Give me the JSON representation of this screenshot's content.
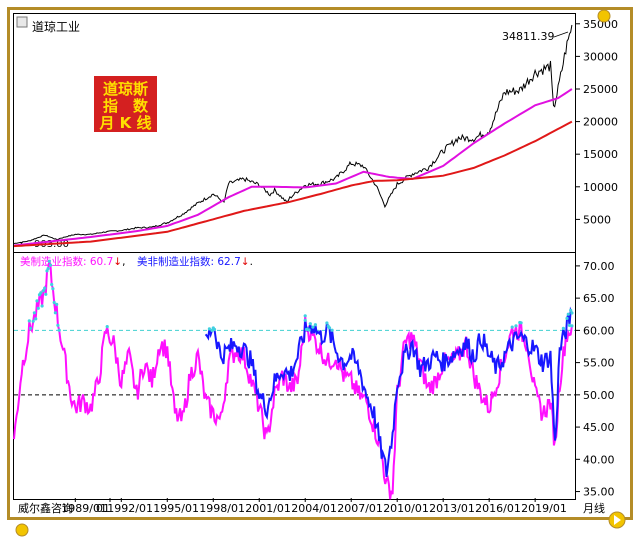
{
  "window_title": "道琼工业",
  "badge": {
    "lines": [
      "道琼斯",
      "指　数",
      "月 K 线"
    ],
    "bg": "#d42020",
    "fg": "#ffe000"
  },
  "footer": {
    "source": "威尔鑫咨询",
    "period": "月线"
  },
  "chart_data": [
    {
      "type": "line",
      "title": "道琼工业",
      "scale": "linear",
      "ylim": [
        0,
        36500
      ],
      "y_ticks": [
        "5000",
        "10000",
        "15000",
        "20000",
        "25000",
        "30000",
        "35000"
      ],
      "annotations": {
        "last_close": "34811.39",
        "low_marker": "903.00"
      },
      "series": [
        {
          "role": "index",
          "color": "#000000",
          "x": [
            1985,
            1986,
            1987,
            1987.8,
            1988,
            1989,
            1990,
            1991,
            1992,
            1993,
            1994,
            1995,
            1996,
            1997,
            1998,
            1998.7,
            1999,
            2000,
            2001,
            2001.7,
            2002,
            2002.8,
            2003,
            2004,
            2005,
            2006,
            2007,
            2007.8,
            2008,
            2008.6,
            2009.2,
            2010,
            2011,
            2012,
            2013,
            2014,
            2015,
            2016,
            2017,
            2018,
            2019,
            2020,
            2020.2,
            2020.5,
            2021,
            2021.4
          ],
          "values": [
            1300,
            1700,
            2600,
            1900,
            2100,
            2700,
            2700,
            3100,
            3300,
            3700,
            3800,
            4500,
            5800,
            7500,
            8900,
            7600,
            10500,
            11200,
            10300,
            8800,
            9500,
            7600,
            8300,
            10300,
            10500,
            11300,
            13600,
            13200,
            12400,
            10300,
            7100,
            10400,
            12000,
            12900,
            15500,
            17500,
            17400,
            18600,
            24500,
            24800,
            27500,
            28500,
            21900,
            25000,
            31000,
            34811.39
          ]
        },
        {
          "role": "ma-short",
          "color": "#e010e0",
          "x": [
            1985,
            1990,
            1993,
            1995,
            1997,
            1999,
            2000.5,
            2002,
            2004,
            2006,
            2007.8,
            2009.5,
            2011,
            2013,
            2015,
            2017,
            2019,
            2020.5,
            2021.4
          ],
          "values": [
            1000,
            2300,
            3200,
            4000,
            5700,
            8400,
            10000,
            10000,
            9900,
            10500,
            12300,
            11500,
            11200,
            13200,
            16700,
            19700,
            22500,
            23600,
            25000
          ]
        },
        {
          "role": "ma-long",
          "color": "#e01818",
          "x": [
            1985,
            1990,
            1995,
            2000,
            2003,
            2005,
            2007,
            2008.5,
            2010,
            2013,
            2015,
            2017,
            2019,
            2021.4
          ],
          "values": [
            900,
            1600,
            3100,
            6300,
            7700,
            8900,
            10200,
            10900,
            11000,
            11700,
            12900,
            14800,
            17000,
            20000
          ]
        }
      ]
    },
    {
      "type": "line",
      "title": "",
      "ylim": [
        34,
        72
      ],
      "y_ticks": [
        "35.00",
        "40.00",
        "45.00",
        "50.00",
        "55.00",
        "60.00",
        "65.00",
        "70.00"
      ],
      "x_ticks": [
        "01",
        "1989/01",
        "1992/01",
        "1995/01",
        "1998/01",
        "2001/01",
        "2004/01",
        "2007/01",
        "2010/01",
        "2013/01",
        "2016/01",
        "2019/01"
      ],
      "reference_lines": [
        {
          "value": 60,
          "color": "#40d0d0"
        },
        {
          "value": 50,
          "color": "#000000"
        }
      ],
      "series": [
        {
          "name": "美制造业指数",
          "label": "美制造业指数: 60.7",
          "color": "#ff10ff",
          "x": [
            1985,
            1985.5,
            1986,
            1986.5,
            1987,
            1987.3,
            1987.7,
            1988.2,
            1988.7,
            1989,
            1989.5,
            1990,
            1990.5,
            1991,
            1991.5,
            1992,
            1992.5,
            1993,
            1993.5,
            1994,
            1994.5,
            1995,
            1995.5,
            1996,
            1996.5,
            1997,
            1997.5,
            1998,
            1998.5,
            1999,
            1999.5,
            2000,
            2000.5,
            2001,
            2001.5,
            2002,
            2002.5,
            2003,
            2003.5,
            2004,
            2004.5,
            2005,
            2005.5,
            2006,
            2006.5,
            2007,
            2007.5,
            2008,
            2008.5,
            2008.9,
            2009.3,
            2009.7,
            2010,
            2010.5,
            2011,
            2011.5,
            2012,
            2012.5,
            2013,
            2013.5,
            2014,
            2014.5,
            2015,
            2015.5,
            2016,
            2016.5,
            2017,
            2017.5,
            2018,
            2018.5,
            2019,
            2019.5,
            2020,
            2020.3,
            2020.6,
            2021,
            2021.4
          ],
          "values": [
            43,
            54,
            60,
            63,
            66,
            70,
            64,
            57,
            50,
            48,
            49,
            48,
            52,
            60,
            58,
            52,
            56,
            50,
            55,
            52,
            58,
            57,
            47,
            46,
            53,
            56,
            49,
            47,
            46,
            55,
            57,
            56,
            52,
            48,
            43,
            50,
            53,
            51,
            52,
            61,
            59,
            57,
            55,
            56,
            53,
            52,
            50,
            49,
            45,
            42,
            36,
            35,
            50,
            58,
            59,
            55,
            51,
            52,
            55,
            55,
            56,
            58,
            53,
            50,
            48,
            52,
            56,
            60,
            60,
            58,
            50,
            47,
            49,
            42,
            52,
            59,
            60.7
          ]
        },
        {
          "name": "美非制造业指数",
          "label": "美非制造业指数: 62.7",
          "color": "#1818ff",
          "x": [
            1997.5,
            1998,
            1998.5,
            1999,
            1999.5,
            2000,
            2000.5,
            2001,
            2001.5,
            2002,
            2002.5,
            2003,
            2003.5,
            2004,
            2004.5,
            2005,
            2005.5,
            2006,
            2006.5,
            2007,
            2007.5,
            2008,
            2008.5,
            2008.9,
            2009.3,
            2009.7,
            2010,
            2010.5,
            2011,
            2011.5,
            2012,
            2012.5,
            2013,
            2013.5,
            2014,
            2014.5,
            2015,
            2015.5,
            2016,
            2016.5,
            2017,
            2017.5,
            2018,
            2018.5,
            2019,
            2019.5,
            2020,
            2020.3,
            2020.6,
            2021,
            2021.4
          ],
          "values": [
            58,
            61,
            56,
            57,
            58,
            57,
            55,
            50,
            48,
            52,
            54,
            53,
            56,
            60,
            61,
            59,
            60,
            57,
            55,
            56,
            54,
            50,
            47,
            42,
            38,
            44,
            52,
            56,
            58,
            54,
            55,
            56,
            55,
            56,
            57,
            58,
            56,
            59,
            56,
            54,
            56,
            58,
            59,
            58,
            57,
            55,
            56,
            42,
            57,
            60,
            62.7
          ]
        }
      ]
    }
  ]
}
